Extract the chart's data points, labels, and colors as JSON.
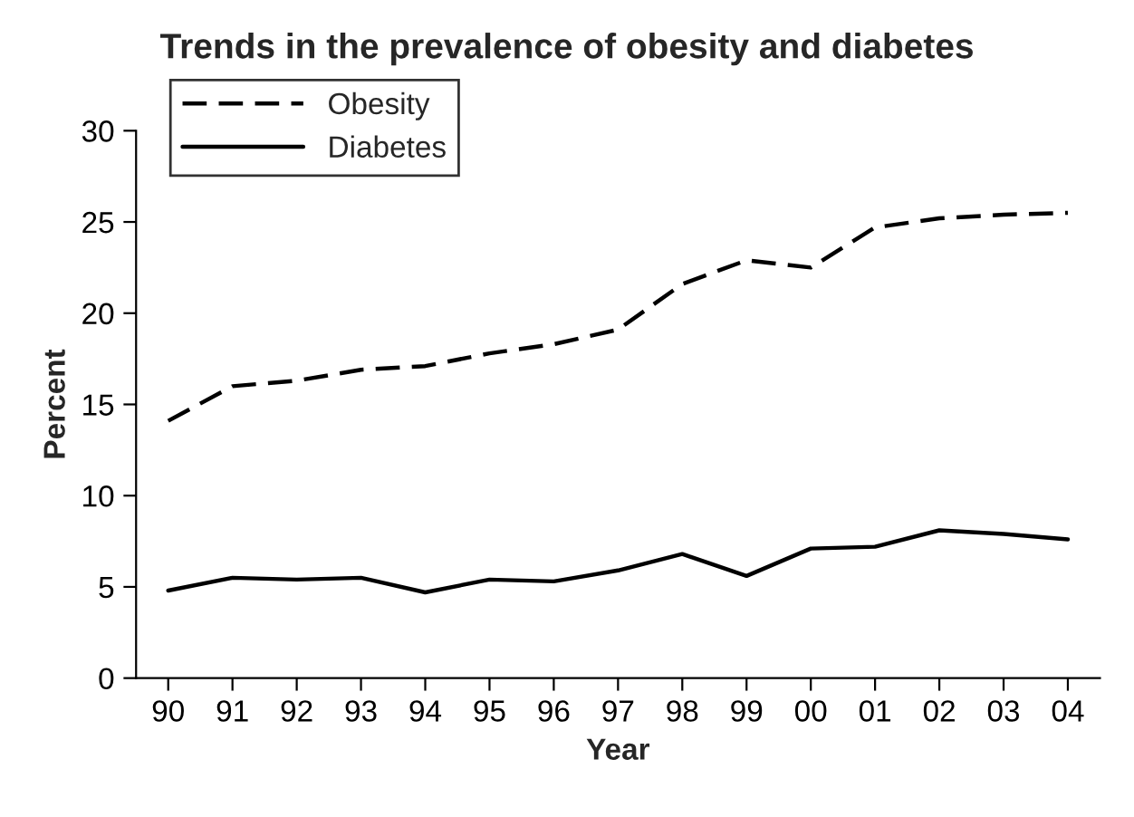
{
  "chart_data": {
    "type": "line",
    "title": "Trends in the prevalence of obesity and diabetes",
    "xlabel": "Year",
    "ylabel": "Percent",
    "categories": [
      "90",
      "91",
      "92",
      "93",
      "94",
      "95",
      "96",
      "97",
      "98",
      "99",
      "00",
      "01",
      "02",
      "03",
      "04"
    ],
    "series": [
      {
        "name": "Obesity",
        "color": "#000000",
        "line_style": "dashed",
        "values": [
          14.1,
          16.0,
          16.3,
          16.9,
          17.1,
          17.8,
          18.3,
          19.1,
          21.6,
          22.9,
          22.5,
          24.7,
          25.2,
          25.4,
          25.5
        ]
      },
      {
        "name": "Diabetes",
        "color": "#000000",
        "line_style": "solid",
        "values": [
          4.8,
          5.5,
          5.4,
          5.5,
          4.7,
          5.4,
          5.3,
          5.9,
          6.8,
          5.6,
          7.1,
          7.2,
          8.1,
          7.9,
          7.6
        ]
      }
    ],
    "ylim": [
      0,
      30
    ],
    "yticks": [
      0,
      5,
      10,
      15,
      20,
      25,
      30
    ],
    "grid": false,
    "legend": "top left",
    "marker": "none"
  }
}
